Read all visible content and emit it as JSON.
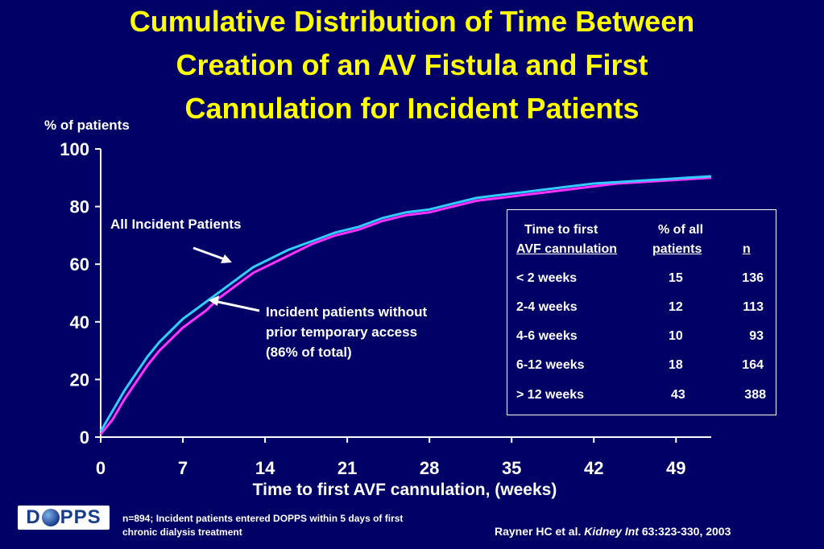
{
  "title": {
    "line1": "Cumulative Distribution of Time Between",
    "line2": "Creation of an AV Fistula and First",
    "line3": "Cannulation for Incident Patients"
  },
  "chart_data": {
    "type": "line",
    "ylabel": "% of patients",
    "xlabel": "Time to first AVF cannulation, (weeks)",
    "xlim": [
      0,
      52
    ],
    "ylim": [
      0,
      100
    ],
    "xticks": [
      0,
      7,
      14,
      21,
      28,
      35,
      42,
      49
    ],
    "yticks": [
      0,
      20,
      40,
      60,
      80,
      100
    ],
    "series": [
      {
        "name": "All  Incident Patients",
        "color": "#33ccff",
        "x": [
          0,
          1,
          2,
          3,
          4,
          5,
          6,
          7,
          8,
          9,
          10,
          11,
          12,
          13,
          14,
          16,
          18,
          20,
          22,
          24,
          26,
          28,
          30,
          32,
          34,
          36,
          38,
          40,
          42,
          44,
          46,
          48,
          50,
          52
        ],
        "y": [
          2,
          9,
          16,
          22,
          28,
          33,
          37,
          41,
          44,
          47,
          50,
          53,
          56,
          59,
          61,
          65,
          68,
          71,
          73,
          76,
          78,
          79,
          81,
          83,
          84,
          85,
          86,
          87,
          88,
          88.5,
          89,
          89.5,
          90,
          90.5
        ]
      },
      {
        "name": "Incident patients without prior temporary access (86% of total)",
        "color": "#ff33ff",
        "x": [
          0,
          1,
          2,
          3,
          4,
          5,
          6,
          7,
          8,
          9,
          10,
          11,
          12,
          13,
          14,
          16,
          18,
          20,
          22,
          24,
          26,
          28,
          30,
          32,
          34,
          36,
          38,
          40,
          42,
          44,
          46,
          48,
          50,
          52
        ],
        "y": [
          1,
          6,
          13,
          19,
          25,
          30,
          34,
          38,
          41,
          44,
          48,
          51,
          54,
          57,
          59,
          63,
          67,
          70,
          72,
          75,
          77,
          78,
          80,
          82,
          83,
          84,
          85,
          86,
          87,
          88,
          88.5,
          89,
          89.5,
          90
        ]
      }
    ]
  },
  "annotations": {
    "all": "All  Incident Patients",
    "without_line1": "Incident patients without",
    "without_line2": "prior temporary access",
    "without_line3": "(86% of total)"
  },
  "table": {
    "header_col1_line1": "Time to first",
    "header_col1_line2": "AVF cannulation",
    "header_col2_line1": "% of all",
    "header_col2_line2": "patients",
    "header_col3": "n",
    "rows": [
      {
        "label": "< 2 weeks",
        "pct": "15",
        "n": "136"
      },
      {
        "label": "2-4 weeks",
        "pct": "12",
        "n": "113"
      },
      {
        "label": "4-6 weeks",
        "pct": "10",
        "n": "93"
      },
      {
        "label": "6-12 weeks",
        "pct": "18",
        "n": "164"
      },
      {
        "label": "> 12 weeks",
        "pct": "43",
        "n": "388"
      }
    ]
  },
  "footer": {
    "logo": "DOPPS",
    "logo_left": "D",
    "logo_right": "PPS",
    "footnote_line1": "n=894; Incident patients entered DOPPS within 5 days of first",
    "footnote_line2": "chronic dialysis treatment",
    "citation_prefix": "Rayner HC et al. ",
    "citation_journal": "Kidney Int",
    "citation_suffix": " 63:323-330, 2003"
  }
}
